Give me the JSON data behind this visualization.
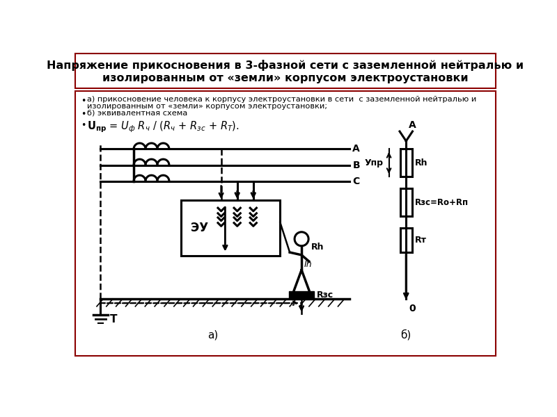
{
  "title_line1": "Напряжение прикосновения в 3-фазной сети с заземленной нейтралью и",
  "title_line2": "изолированным от «земли» корпусом электроустановки",
  "bullet1a": "а) прикосновение человека к корпусу электроустановки в сети  с заземленной нейтралью и",
  "bullet1b": "изолированным от «земли» корпусом электроустановки;",
  "bullet2": "б) эквивалентная схема",
  "formula": "$U_{пр} = U_{ф}\\,R_{ч}\\,/\\,(R_{ч} + R_{зс} + R_{Т}).$",
  "label_A": "А",
  "label_B": "В",
  "label_C": "С",
  "label_eu": "ЭУ",
  "label_T": "Т",
  "label_Rh": "Rh",
  "label_Ih": "Ih",
  "label_Rzs": "Rзс",
  "label_fig_a": "а)",
  "label_fig_b": "б)",
  "label_Upr": "Упр",
  "label_Rh2": "Rh",
  "label_Rzs2": "Rзс=Ro+Rп",
  "label_Rt": "Rт",
  "label_A2": "А",
  "label_0": "0",
  "bg_color": "#ffffff",
  "line_color": "#000000",
  "border_color": "#8B0000"
}
